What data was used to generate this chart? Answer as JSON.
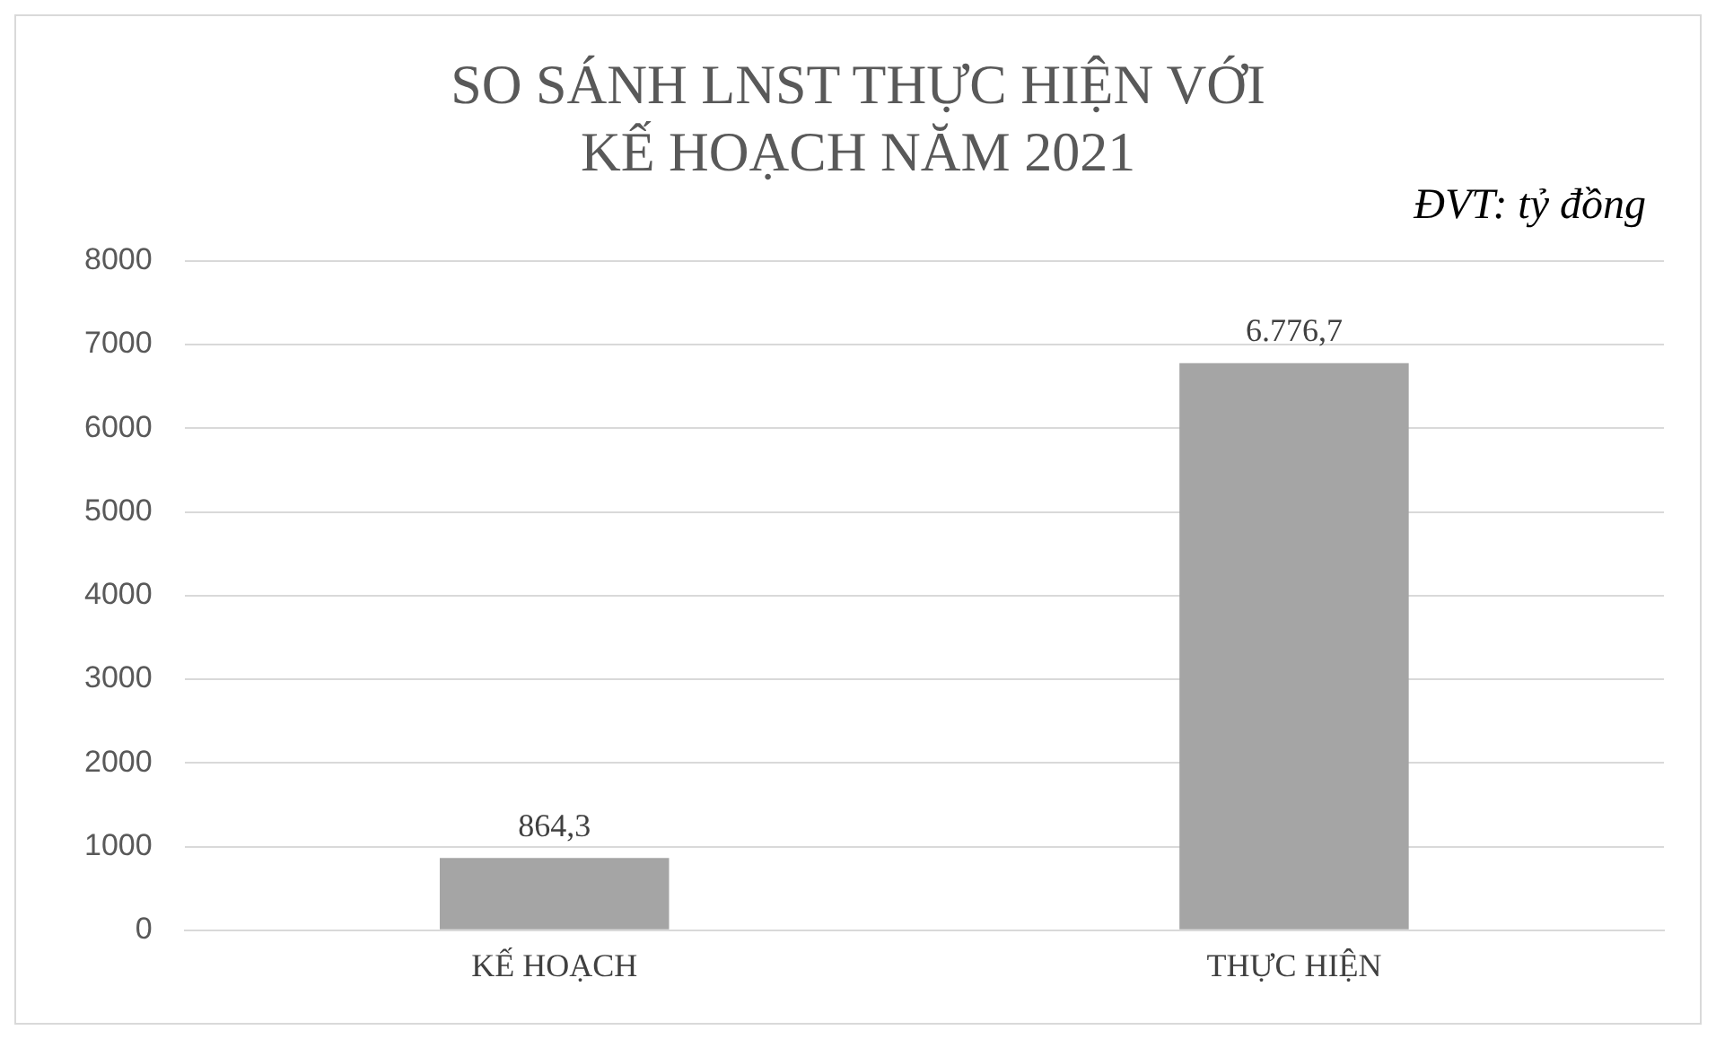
{
  "chart_data": {
    "type": "bar",
    "title": "SO SÁNH LNST THỰC HIỆN VỚI\nKẾ HOẠCH NĂM 2021",
    "categories": [
      "KẾ HOẠCH",
      "THỰC HIỆN"
    ],
    "values": [
      864.3,
      6776.7
    ],
    "value_labels": [
      "864,3",
      "6.776,7"
    ],
    "color": "#a5a5a5",
    "ylim": [
      0,
      8000
    ],
    "yticks": [
      0,
      1000,
      2000,
      3000,
      4000,
      5000,
      6000,
      7000,
      8000
    ],
    "grid": "y",
    "annotations": [
      "ĐVT: tỷ đồng"
    ]
  }
}
